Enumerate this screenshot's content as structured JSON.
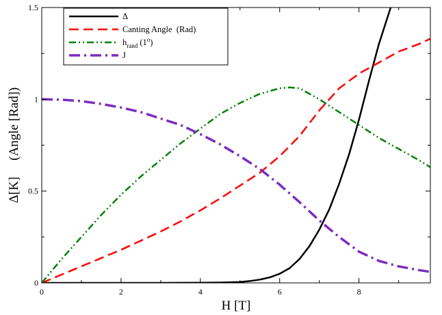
{
  "chart_data": {
    "type": "line",
    "xlabel": "H [T]",
    "ylabel": "Δ[K]     (Angle [Rad])",
    "xlim": [
      0,
      9.8
    ],
    "ylim": [
      0,
      1.5
    ],
    "xticks": [
      0,
      2,
      4,
      6,
      8
    ],
    "xtick_labels": [
      "0",
      "2",
      "4",
      "6",
      "8"
    ],
    "yticks": [
      0,
      0.5,
      1,
      1.5
    ],
    "ytick_labels": [
      "0",
      "0.5",
      "1",
      "1.5"
    ],
    "grid": false,
    "legend_position": "top-left",
    "legend_labels": {
      "delta": "Δ",
      "canting": "Canting Angle  (Rad)",
      "hrand_main": "h",
      "hrand_sub": "rand",
      "hrand_paren_open": " (1",
      "hrand_sup": "o",
      "hrand_paren_close": ")",
      "j": "J"
    },
    "series": [
      {
        "name": "Δ",
        "color": "#000000",
        "style": "solid",
        "x": [
          0,
          1,
          2,
          3,
          4,
          4.5,
          5,
          5.25,
          5.5,
          5.75,
          6,
          6.25,
          6.5,
          6.75,
          7,
          7.25,
          7.5,
          7.75,
          8,
          8.25,
          8.5,
          8.8
        ],
        "y": [
          0,
          0,
          0,
          0,
          0.001,
          0.002,
          0.005,
          0.01,
          0.018,
          0.03,
          0.05,
          0.08,
          0.13,
          0.2,
          0.29,
          0.4,
          0.54,
          0.7,
          0.89,
          1.1,
          1.3,
          1.5
        ]
      },
      {
        "name": "Canting Angle  (Rad)",
        "color": "#ff0000",
        "style": "dashed",
        "x": [
          0,
          0.5,
          1,
          1.5,
          2,
          2.5,
          3,
          3.5,
          4,
          4.5,
          5,
          5.5,
          6,
          6.5,
          7,
          7.5,
          8,
          8.5,
          9,
          9.5,
          9.8
        ],
        "y": [
          0,
          0.045,
          0.09,
          0.135,
          0.18,
          0.23,
          0.28,
          0.335,
          0.395,
          0.46,
          0.53,
          0.6,
          0.69,
          0.8,
          0.94,
          1.06,
          1.14,
          1.2,
          1.26,
          1.3,
          1.33
        ]
      },
      {
        "name": "h_rand (1°)",
        "color": "#008000",
        "style": "dash-dot-dot",
        "x": [
          0,
          0.5,
          1,
          1.5,
          2,
          2.5,
          3,
          3.5,
          4,
          4.5,
          5,
          5.5,
          6,
          6.25,
          6.5,
          7,
          7.5,
          8,
          8.5,
          9,
          9.5,
          9.8
        ],
        "y": [
          0,
          0.13,
          0.25,
          0.37,
          0.48,
          0.58,
          0.67,
          0.76,
          0.84,
          0.92,
          0.98,
          1.03,
          1.06,
          1.065,
          1.06,
          1.0,
          0.93,
          0.86,
          0.79,
          0.73,
          0.67,
          0.63
        ]
      },
      {
        "name": "J",
        "color": "#7b2cbf",
        "style": "dash-dot",
        "x": [
          0,
          0.5,
          1,
          1.5,
          2,
          2.5,
          3,
          3.5,
          4,
          4.5,
          5,
          5.5,
          6,
          6.5,
          7,
          7.5,
          8,
          8.5,
          9,
          9.5,
          9.8
        ],
        "y": [
          1.0,
          0.998,
          0.99,
          0.975,
          0.955,
          0.93,
          0.895,
          0.86,
          0.81,
          0.755,
          0.69,
          0.62,
          0.535,
          0.44,
          0.34,
          0.25,
          0.17,
          0.12,
          0.09,
          0.07,
          0.06
        ]
      }
    ]
  }
}
